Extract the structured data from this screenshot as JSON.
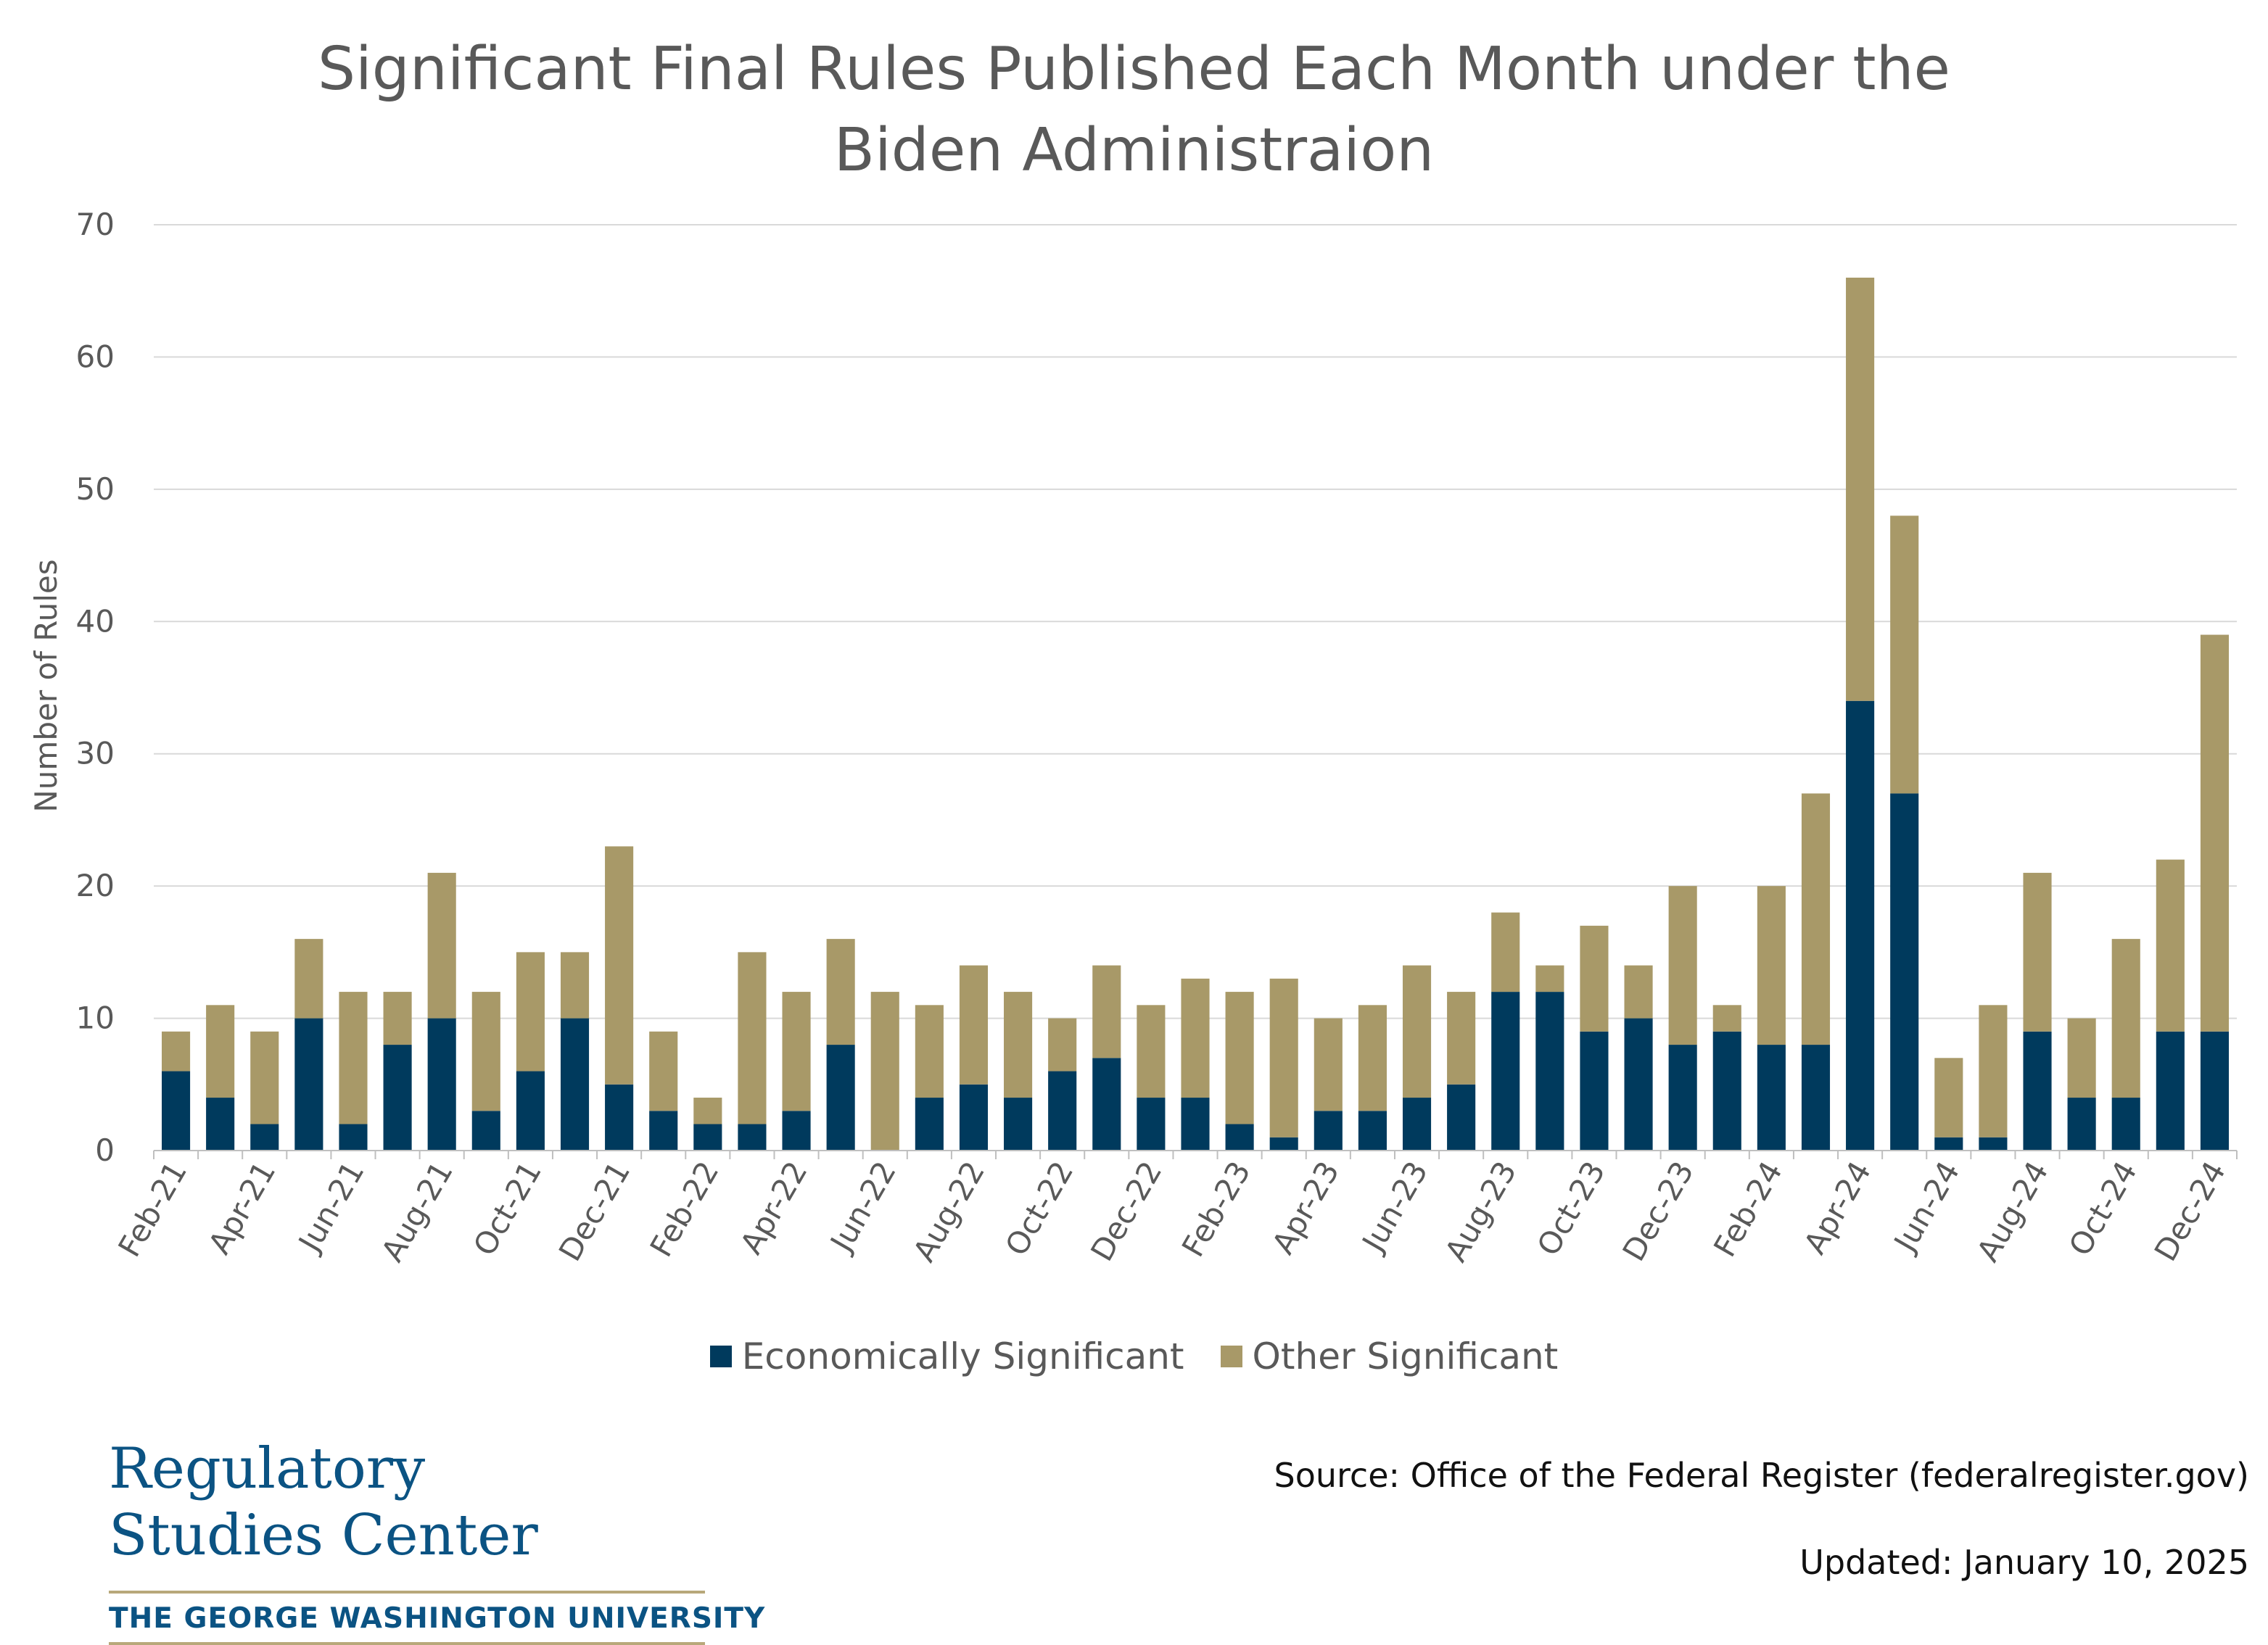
{
  "chart_data": {
    "type": "bar",
    "stacked": true,
    "title_lines": [
      "Significant Final Rules Published Each Month under the",
      "Biden Administraion"
    ],
    "ylabel": "Number of Rules",
    "xlabel": "",
    "ylim": [
      0,
      70
    ],
    "yticks": [
      0,
      10,
      20,
      30,
      40,
      50,
      60,
      70
    ],
    "grid": true,
    "legend_position": "bottom",
    "categories": [
      "Feb-21",
      "Mar-21",
      "Apr-21",
      "May-21",
      "Jun-21",
      "Jul-21",
      "Aug-21",
      "Sep-21",
      "Oct-21",
      "Nov-21",
      "Dec-21",
      "Jan-22",
      "Feb-22",
      "Mar-22",
      "Apr-22",
      "May-22",
      "Jun-22",
      "Jul-22",
      "Aug-22",
      "Sep-22",
      "Oct-22",
      "Nov-22",
      "Dec-22",
      "Jan-23",
      "Feb-23",
      "Mar-23",
      "Apr-23",
      "May-23",
      "Jun-23",
      "Jul-23",
      "Aug-23",
      "Sep-23",
      "Oct-23",
      "Nov-23",
      "Dec-23",
      "Jan-24",
      "Feb-24",
      "Mar-24",
      "Apr-24",
      "May-24",
      "Jun-24",
      "Jul-24",
      "Aug-24",
      "Sep-24",
      "Oct-24",
      "Nov-24",
      "Dec-24"
    ],
    "tick_labels": [
      "Feb-21",
      "Apr-21",
      "Jun-21",
      "Aug-21",
      "Oct-21",
      "Dec-21",
      "Feb-22",
      "Apr-22",
      "Jun-22",
      "Aug-22",
      "Oct-22",
      "Dec-22",
      "Feb-23",
      "Apr-23",
      "Jun-23",
      "Aug-23",
      "Oct-23",
      "Dec-23",
      "Feb-24",
      "Apr-24",
      "Jun-24",
      "Aug-24",
      "Oct-24",
      "Dec-24"
    ],
    "series": [
      {
        "name": "Economically Significant",
        "color": "#003a5d",
        "values": [
          6,
          4,
          2,
          10,
          2,
          8,
          10,
          3,
          6,
          10,
          5,
          3,
          2,
          2,
          3,
          8,
          0,
          4,
          5,
          4,
          6,
          7,
          4,
          4,
          2,
          1,
          3,
          3,
          4,
          5,
          12,
          12,
          9,
          10,
          8,
          9,
          8,
          8,
          34,
          27,
          1,
          1,
          9,
          4,
          4,
          9,
          9
        ]
      },
      {
        "name": "Other Significant",
        "color": "#a89968",
        "values": [
          3,
          7,
          7,
          6,
          10,
          4,
          11,
          9,
          9,
          5,
          18,
          6,
          2,
          13,
          9,
          8,
          12,
          7,
          9,
          8,
          4,
          7,
          7,
          9,
          10,
          12,
          7,
          8,
          10,
          7,
          6,
          2,
          8,
          4,
          12,
          2,
          12,
          19,
          32,
          21,
          6,
          10,
          12,
          6,
          12,
          13,
          30
        ]
      }
    ]
  },
  "footer": {
    "source": "Source: Office of the Federal Register (federalregister.gov)",
    "updated": "Updated: January 10, 2025"
  },
  "logo": {
    "line1": "Regulatory",
    "line2": "Studies Center",
    "university": "THE GEORGE WASHINGTON UNIVERSITY"
  },
  "colors": {
    "axis_text": "#595959",
    "grid": "#d9d9d9",
    "brand_blue": "#0b5383",
    "brand_gold": "#b8a87a"
  }
}
